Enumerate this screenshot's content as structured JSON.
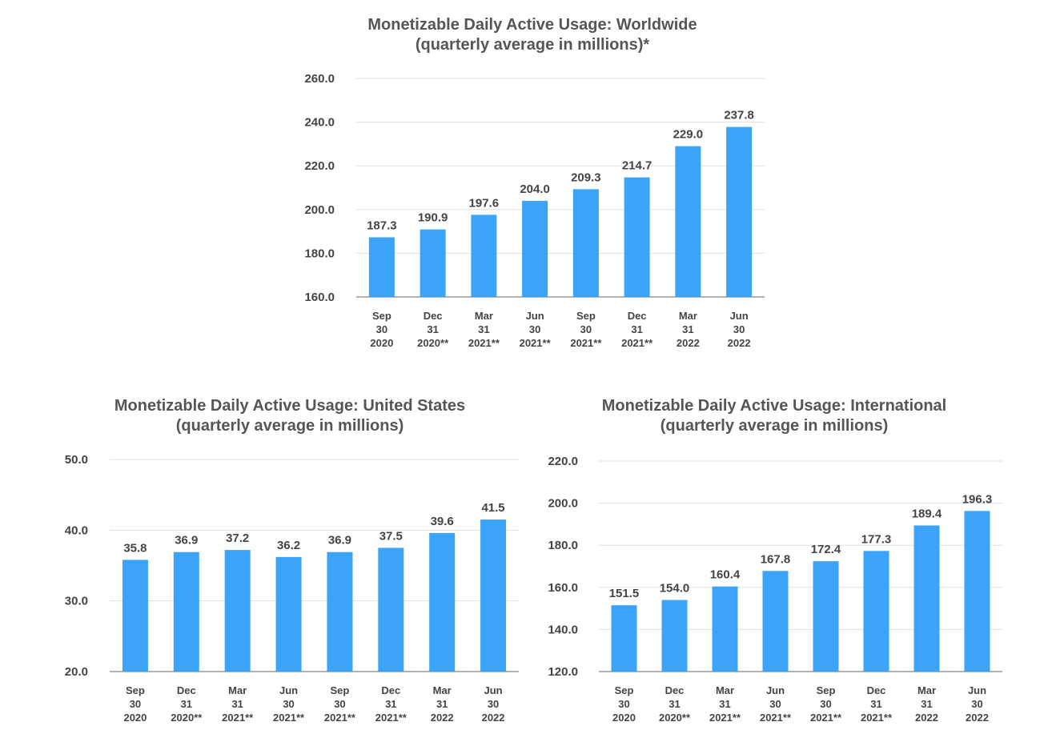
{
  "chart_data": [
    {
      "type": "bar",
      "title": "Monetizable Daily Active Usage: Worldwide",
      "subtitle": "(quarterly average in millions)*",
      "categories": [
        [
          "Sep",
          "30",
          "2020"
        ],
        [
          "Dec",
          "31",
          "2020**"
        ],
        [
          "Mar",
          "31",
          "2021**"
        ],
        [
          "Jun",
          "30",
          "2021**"
        ],
        [
          "Sep",
          "30",
          "2021**"
        ],
        [
          "Dec",
          "31",
          "2021**"
        ],
        [
          "Mar",
          "31",
          "2022"
        ],
        [
          "Jun",
          "30",
          "2022"
        ]
      ],
      "values": [
        187.3,
        190.9,
        197.6,
        204.0,
        209.3,
        214.7,
        229.0,
        237.8
      ],
      "value_labels": [
        "187.3",
        "190.9",
        "197.6",
        "204.0",
        "209.3",
        "214.7",
        "229.0",
        "237.8"
      ],
      "ylim": [
        160,
        260
      ],
      "yticks": [
        "160.0",
        "180.0",
        "200.0",
        "220.0",
        "240.0",
        "260.0"
      ],
      "xlabel": "",
      "ylabel": "",
      "grid": true,
      "legend": "none",
      "bar_color": "#3ba4f9"
    },
    {
      "type": "bar",
      "title": "Monetizable Daily Active Usage: United States",
      "subtitle": "(quarterly average in millions)",
      "categories": [
        [
          "Sep",
          "30",
          "2020"
        ],
        [
          "Dec",
          "31",
          "2020**"
        ],
        [
          "Mar",
          "31",
          "2021**"
        ],
        [
          "Jun",
          "30",
          "2021**"
        ],
        [
          "Sep",
          "30",
          "2021**"
        ],
        [
          "Dec",
          "31",
          "2021**"
        ],
        [
          "Mar",
          "31",
          "2022"
        ],
        [
          "Jun",
          "30",
          "2022"
        ]
      ],
      "values": [
        35.8,
        36.9,
        37.2,
        36.2,
        36.9,
        37.5,
        39.6,
        41.5
      ],
      "value_labels": [
        "35.8",
        "36.9",
        "37.2",
        "36.2",
        "36.9",
        "37.5",
        "39.6",
        "41.5"
      ],
      "ylim": [
        20,
        50
      ],
      "yticks": [
        "20.0",
        "30.0",
        "40.0",
        "50.0"
      ],
      "xlabel": "",
      "ylabel": "",
      "grid": true,
      "legend": "none",
      "bar_color": "#3ba4f9"
    },
    {
      "type": "bar",
      "title": "Monetizable Daily Active Usage: International",
      "subtitle": "(quarterly average in millions)",
      "categories": [
        [
          "Sep",
          "30",
          "2020"
        ],
        [
          "Dec",
          "31",
          "2020**"
        ],
        [
          "Mar",
          "31",
          "2021**"
        ],
        [
          "Jun",
          "30",
          "2021**"
        ],
        [
          "Sep",
          "30",
          "2021**"
        ],
        [
          "Dec",
          "31",
          "2021**"
        ],
        [
          "Mar",
          "31",
          "2022"
        ],
        [
          "Jun",
          "30",
          "2022"
        ]
      ],
      "values": [
        151.5,
        154.0,
        160.4,
        167.8,
        172.4,
        177.3,
        189.4,
        196.3
      ],
      "value_labels": [
        "151.5",
        "154.0",
        "160.4",
        "167.8",
        "172.4",
        "177.3",
        "189.4",
        "196.3"
      ],
      "ylim": [
        120,
        220
      ],
      "yticks": [
        "120.0",
        "140.0",
        "160.0",
        "180.0",
        "200.0",
        "220.0"
      ],
      "xlabel": "",
      "ylabel": "",
      "grid": true,
      "legend": "none",
      "bar_color": "#3ba4f9"
    }
  ]
}
